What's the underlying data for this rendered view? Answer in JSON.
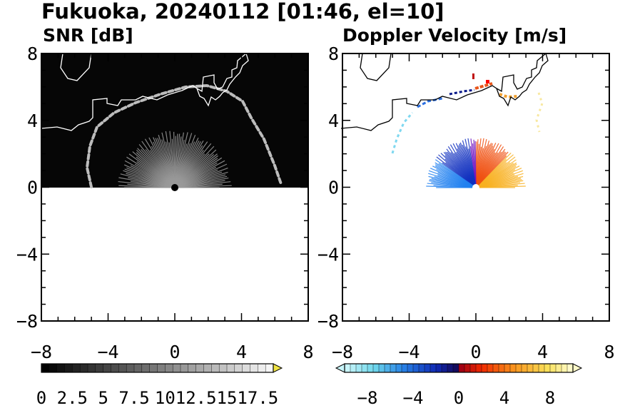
{
  "figure": {
    "title": "Fukuoka, 20240112 [01:46, el=10]"
  },
  "chart_data": [
    {
      "type": "heatmap",
      "title": "SNR [dB]",
      "xlim": [
        -8,
        8
      ],
      "ylim": [
        -8,
        8
      ],
      "x_ticks": [
        -8,
        -4,
        0,
        4,
        8
      ],
      "y_ticks": [
        8,
        4,
        0,
        -4,
        -8
      ],
      "x_tick_labels": [
        "−8",
        "−4",
        "0",
        "4",
        "8"
      ],
      "y_tick_labels": [
        "8",
        "4",
        "0",
        "−4",
        "−8"
      ],
      "data_extent": "upper half (y from 0 to 8), dark background with bright coastal echoes",
      "colorbar": {
        "colormap": "grayscale",
        "range": [
          0,
          18.75
        ],
        "extend": "max",
        "extend_color": "#f0e442",
        "tick_values": [
          0,
          2.5,
          5,
          7.5,
          10,
          12.5,
          15,
          17.5
        ],
        "tick_labels": [
          "0",
          "2.5",
          "5",
          "7.5",
          "10",
          "12.5",
          "15",
          "17.5"
        ]
      }
    },
    {
      "type": "heatmap",
      "title": "Doppler Velocity [m/s]",
      "xlim": [
        -8,
        8
      ],
      "ylim": [
        -8,
        8
      ],
      "x_ticks": [
        -8,
        -4,
        0,
        4,
        8
      ],
      "y_ticks": [
        8,
        4,
        0,
        -4,
        -8
      ],
      "x_tick_labels": [
        "−8",
        "−4",
        "0",
        "4",
        "8"
      ],
      "y_tick_labels": [
        "8",
        "4",
        "0",
        "−4",
        "−8"
      ],
      "colorbar": {
        "colormap": "cyan-blue-red-yellow diverging",
        "range": [
          -10,
          10
        ],
        "extend": "both",
        "tick_values": [
          -8,
          -4,
          0,
          4,
          8
        ],
        "tick_labels": [
          "−8",
          "−4",
          "0",
          "4",
          "8"
        ]
      }
    }
  ]
}
